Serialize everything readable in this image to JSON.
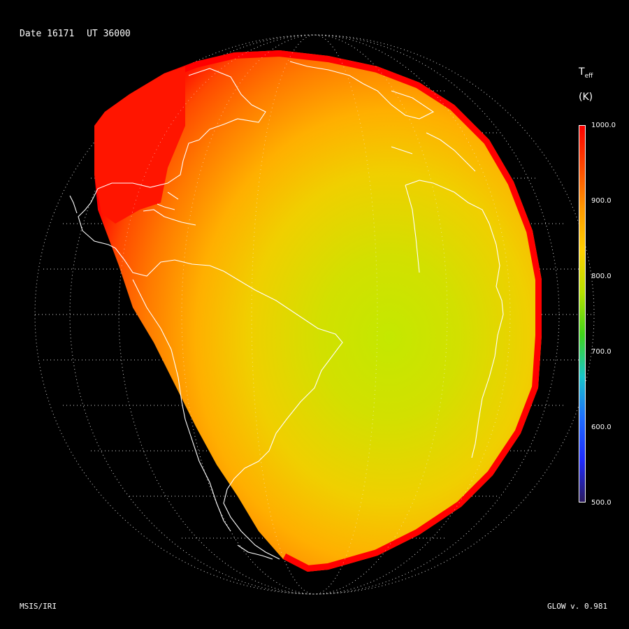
{
  "header": {
    "date": "Date 16171",
    "ut": "UT 36000"
  },
  "footer": {
    "left": "MSIS/IRI",
    "right": "GLOW v. 0.981"
  },
  "colorbar": {
    "title_main": "T",
    "title_sub": "eff",
    "units": "(K)",
    "ticks": [
      "1000.0",
      "900.0",
      "800.0",
      "700.0",
      "600.0",
      "500.0"
    ],
    "range": [
      500,
      1000
    ],
    "colors": [
      "#2a1a5e",
      "#1f2bff",
      "#1e6dff",
      "#18c5c8",
      "#3fd41a",
      "#b5e000",
      "#ffd000",
      "#ff9a00",
      "#ff4a00",
      "#ff0000"
    ]
  },
  "map": {
    "projection": "orthographic",
    "variable": "Teff",
    "terminator_color": "#ff0000",
    "min_region_color": "#c4e800"
  }
}
